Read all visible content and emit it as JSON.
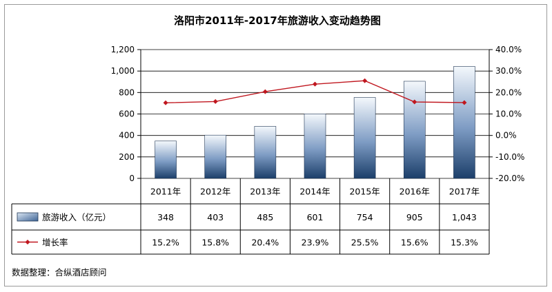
{
  "chart_data": {
    "type": "bar",
    "title": "洛阳市2011年-2017年旅游收入变动趋势图",
    "categories": [
      "2011年",
      "2012年",
      "2013年",
      "2014年",
      "2015年",
      "2016年",
      "2017年"
    ],
    "series": [
      {
        "name": "旅游收入（亿元）",
        "type": "bar",
        "axis": "left",
        "values": [
          348,
          403,
          485,
          601,
          754,
          905,
          1043
        ],
        "labels": [
          "348",
          "403",
          "485",
          "601",
          "754",
          "905",
          "1,043"
        ]
      },
      {
        "name": "增长率",
        "type": "line",
        "axis": "right",
        "values": [
          15.2,
          15.8,
          20.4,
          23.9,
          25.5,
          15.6,
          15.3
        ],
        "labels": [
          "15.2%",
          "15.8%",
          "20.4%",
          "23.9%",
          "25.5%",
          "15.6%",
          "15.3%"
        ]
      }
    ],
    "y_left": {
      "min": 0,
      "max": 1200,
      "step": 200,
      "ticks": [
        "0",
        "200",
        "400",
        "600",
        "800",
        "1,000",
        "1,200"
      ]
    },
    "y_right": {
      "min": -20,
      "max": 40,
      "step": 10,
      "ticks": [
        "-20.0%",
        "-10.0%",
        "0.0%",
        "10.0%",
        "20.0%",
        "30.0%",
        "40.0%"
      ]
    },
    "grid": true,
    "legend": "data-table"
  },
  "source_note": "数据整理：合纵酒店顾问",
  "colors": {
    "bar_top": "#f4f8fc",
    "bar_bottom": "#1c3f6a",
    "bar_stroke": "#1f3553",
    "line": "#c0171f",
    "grid": "#000000",
    "border": "#9a9a9a"
  }
}
